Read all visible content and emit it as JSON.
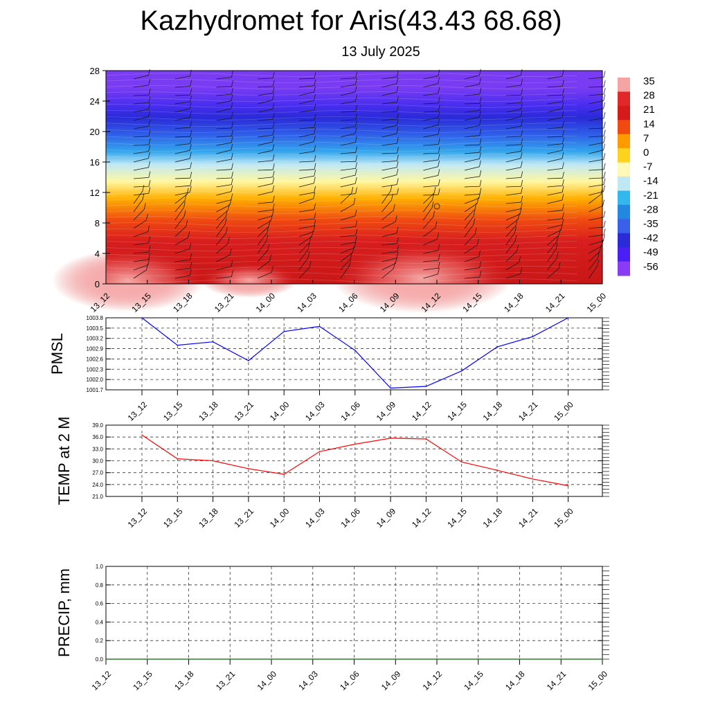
{
  "header": {
    "title": "Kazhydromet for Aris(43.43 68.68)",
    "subtitle": "13 July 2025"
  },
  "chart_data": [
    {
      "type": "heatmap",
      "name": "cross-section",
      "x_tick_labels": [
        "13_12",
        "13_15",
        "13_18",
        "13_21",
        "14_00",
        "14_03",
        "14_06",
        "14_09",
        "14_12",
        "14_15",
        "14_18",
        "14_21",
        "15_00"
      ],
      "y_tick_labels": [
        "0",
        "4",
        "8",
        "12",
        "16",
        "20",
        "24",
        "28"
      ],
      "ylim": [
        0,
        28
      ],
      "colorbar_labels": [
        "35",
        "28",
        "21",
        "14",
        "7",
        "0",
        "-7",
        "-14",
        "-21",
        "-28",
        "-35",
        "-42",
        "-49",
        "-56"
      ],
      "colorbar_colors": [
        "#f6a3a3",
        "#e02828",
        "#d41a1a",
        "#f04a10",
        "#ff9a00",
        "#ffd21e",
        "#fff9b8",
        "#bfe8f5",
        "#33b8ee",
        "#2288e0",
        "#3a5fe8",
        "#2a2ad8",
        "#4a1ef5",
        "#8a3cf5"
      ],
      "grid": false
    },
    {
      "type": "line",
      "ylabel": "PMSL",
      "categories": [
        "13_12",
        "13_15",
        "13_18",
        "13_21",
        "14_00",
        "14_03",
        "14_06",
        "14_09",
        "14_12",
        "14_15",
        "14_18",
        "14_21",
        "15_00"
      ],
      "series": [
        {
          "color": "#0000ff",
          "values": [
            1003.8,
            1003.0,
            1003.1,
            1002.55,
            1003.4,
            1003.55,
            1002.85,
            1001.75,
            1001.8,
            1002.25,
            1002.95,
            1003.25,
            1003.8
          ]
        }
      ],
      "y_tick_labels": [
        "1003.8",
        "1003.5",
        "1003.2",
        "1002.9",
        "1002.6",
        "1002.3",
        "1002.0",
        "1001.7"
      ],
      "ylim": [
        1001.7,
        1003.8
      ],
      "grid": true
    },
    {
      "type": "line",
      "ylabel": "TEMP at 2 M",
      "categories": [
        "13_12",
        "13_15",
        "13_18",
        "13_21",
        "14_00",
        "14_03",
        "14_06",
        "14_09",
        "14_12",
        "14_15",
        "14_18",
        "14_21",
        "15_00"
      ],
      "series": [
        {
          "color": "#ff0000",
          "values": [
            36.5,
            30.5,
            30.0,
            28.0,
            26.6,
            32.3,
            34.2,
            35.7,
            35.5,
            29.7,
            27.6,
            25.4,
            23.7
          ]
        }
      ],
      "y_tick_labels": [
        "39.0",
        "36.0",
        "33.0",
        "30.0",
        "27.0",
        "24.0",
        "21.0"
      ],
      "ylim": [
        21.0,
        39.0
      ],
      "grid": true
    },
    {
      "type": "line",
      "ylabel": "PRECIP, mm",
      "categories": [
        "13_12",
        "13_15",
        "13_18",
        "13_21",
        "14_00",
        "14_03",
        "14_06",
        "14_09",
        "14_12",
        "14_15",
        "14_18",
        "14_21",
        "15_00"
      ],
      "series": [
        {
          "color": "#006400",
          "values": [
            0,
            0,
            0,
            0,
            0,
            0,
            0,
            0,
            0,
            0,
            0,
            0,
            0
          ]
        }
      ],
      "y_tick_labels": [
        "1.0",
        "0.8",
        "0.6",
        "0.4",
        "0.2",
        "0.0"
      ],
      "ylim": [
        0.0,
        1.0
      ],
      "grid": true
    }
  ]
}
